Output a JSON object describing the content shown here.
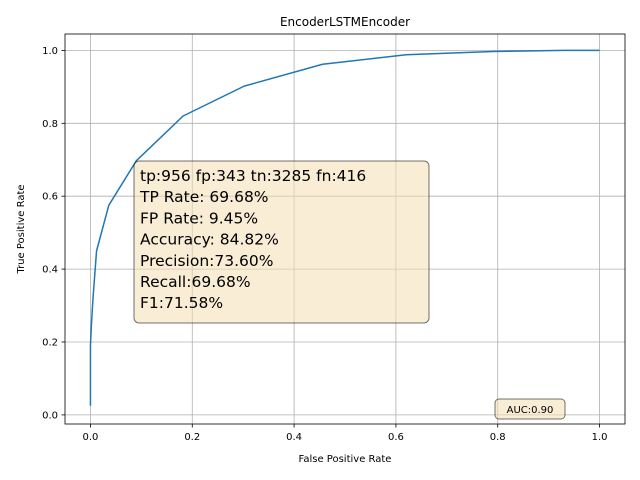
{
  "chart_data": {
    "type": "line",
    "title": "EncoderLSTMEncoder",
    "xlabel": "False Positive Rate",
    "ylabel": "True Positive Rate",
    "xlim": [
      -0.05,
      1.05
    ],
    "ylim": [
      -0.025,
      1.045
    ],
    "xticks": [
      "0.0",
      "0.2",
      "0.4",
      "0.6",
      "0.8",
      "1.0"
    ],
    "yticks": [
      "0.0",
      "0.2",
      "0.4",
      "0.6",
      "0.8",
      "1.0"
    ],
    "grid": true,
    "series": [
      {
        "color": "#1f77b4",
        "x": [
          0.0,
          0.0,
          0.002,
          0.005,
          0.012,
          0.036,
          0.09,
          0.182,
          0.302,
          0.456,
          0.62,
          0.79,
          0.93,
          1.0
        ],
        "y": [
          0.025,
          0.19,
          0.25,
          0.32,
          0.45,
          0.575,
          0.697,
          0.82,
          0.902,
          0.962,
          0.988,
          0.997,
          1.0,
          1.0
        ]
      }
    ],
    "stats_box": {
      "lines": [
        "tp:956 fp:343 tn:3285 fn:416",
        "TP Rate: 69.68%",
        "FP Rate: 9.45%",
        "Accuracy: 84.82%",
        "Precision:73.60%",
        "Recall:69.68%",
        "F1:71.58%"
      ],
      "background": "#f5deb3"
    },
    "auc_label": "AUC:0.90"
  }
}
